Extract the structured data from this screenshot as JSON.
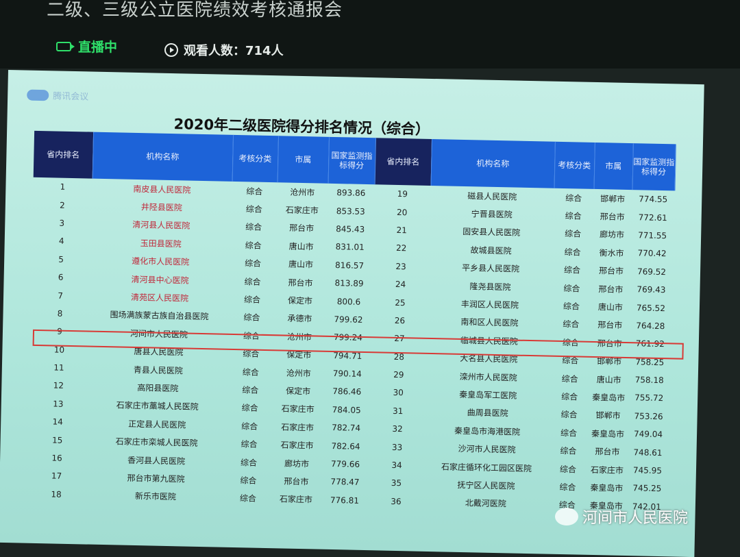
{
  "meeting": {
    "title": "二级、三级公立医院绩效考核通报会",
    "live_label": "直播中",
    "viewers_label": "观看人数：714人",
    "app_logo": "腾讯会议"
  },
  "slide": {
    "title": "2020年二级医院得分排名情况（综合）",
    "headers": {
      "rank": "省内排名",
      "name": "机构名称",
      "category": "考核分类",
      "city": "市属",
      "score": "国家监测指标得分"
    },
    "highlighted_ranks": [
      9,
      27
    ],
    "colors": {
      "header": "#1d63d8",
      "rank_header": "#17235e",
      "highlight_border": "#d83a36",
      "top_names": "#c0283a"
    },
    "left": [
      {
        "rank": "1",
        "name": "南皮县人民医院",
        "category": "综合",
        "city": "沧州市",
        "score": "893.86"
      },
      {
        "rank": "2",
        "name": "井陉县医院",
        "category": "综合",
        "city": "石家庄市",
        "score": "853.53"
      },
      {
        "rank": "3",
        "name": "清河县人民医院",
        "category": "综合",
        "city": "邢台市",
        "score": "845.43"
      },
      {
        "rank": "4",
        "name": "玉田县医院",
        "category": "综合",
        "city": "唐山市",
        "score": "831.01"
      },
      {
        "rank": "5",
        "name": "遵化市人民医院",
        "category": "综合",
        "city": "唐山市",
        "score": "816.57"
      },
      {
        "rank": "6",
        "name": "清河县中心医院",
        "category": "综合",
        "city": "邢台市",
        "score": "813.89"
      },
      {
        "rank": "7",
        "name": "清苑区人民医院",
        "category": "综合",
        "city": "保定市",
        "score": "800.6"
      },
      {
        "rank": "8",
        "name": "围场满族蒙古族自治县医院",
        "category": "综合",
        "city": "承德市",
        "score": "799.62"
      },
      {
        "rank": "9",
        "name": "河间市人民医院",
        "category": "综合",
        "city": "沧州市",
        "score": "799.24"
      },
      {
        "rank": "10",
        "name": "唐县人民医院",
        "category": "综合",
        "city": "保定市",
        "score": "794.71"
      },
      {
        "rank": "11",
        "name": "青县人民医院",
        "category": "综合",
        "city": "沧州市",
        "score": "790.14"
      },
      {
        "rank": "12",
        "name": "高阳县医院",
        "category": "综合",
        "city": "保定市",
        "score": "786.46"
      },
      {
        "rank": "13",
        "name": "石家庄市藁城人民医院",
        "category": "综合",
        "city": "石家庄市",
        "score": "784.05"
      },
      {
        "rank": "14",
        "name": "正定县人民医院",
        "category": "综合",
        "city": "石家庄市",
        "score": "782.74"
      },
      {
        "rank": "15",
        "name": "石家庄市栾城人民医院",
        "category": "综合",
        "city": "石家庄市",
        "score": "782.64"
      },
      {
        "rank": "16",
        "name": "香河县人民医院",
        "category": "综合",
        "city": "廊坊市",
        "score": "779.66"
      },
      {
        "rank": "17",
        "name": "邢台市第九医院",
        "category": "综合",
        "city": "邢台市",
        "score": "778.47"
      },
      {
        "rank": "18",
        "name": "新乐市医院",
        "category": "综合",
        "city": "石家庄市",
        "score": "776.81"
      }
    ],
    "right": [
      {
        "rank": "19",
        "name": "磁县人民医院",
        "category": "综合",
        "city": "邯郸市",
        "score": "774.55"
      },
      {
        "rank": "20",
        "name": "宁晋县医院",
        "category": "综合",
        "city": "邢台市",
        "score": "772.61"
      },
      {
        "rank": "21",
        "name": "固安县人民医院",
        "category": "综合",
        "city": "廊坊市",
        "score": "771.55"
      },
      {
        "rank": "22",
        "name": "故城县医院",
        "category": "综合",
        "city": "衡水市",
        "score": "770.42"
      },
      {
        "rank": "23",
        "name": "平乡县人民医院",
        "category": "综合",
        "city": "邢台市",
        "score": "769.52"
      },
      {
        "rank": "24",
        "name": "隆尧县医院",
        "category": "综合",
        "city": "邢台市",
        "score": "769.43"
      },
      {
        "rank": "25",
        "name": "丰润区人民医院",
        "category": "综合",
        "city": "唐山市",
        "score": "765.52"
      },
      {
        "rank": "26",
        "name": "南和区人民医院",
        "category": "综合",
        "city": "邢台市",
        "score": "764.28"
      },
      {
        "rank": "27",
        "name": "临城县人民医院",
        "category": "综合",
        "city": "邢台市",
        "score": "761.92"
      },
      {
        "rank": "28",
        "name": "大名县人民医院",
        "category": "综合",
        "city": "邯郸市",
        "score": "758.25"
      },
      {
        "rank": "29",
        "name": "滦州市人民医院",
        "category": "综合",
        "city": "唐山市",
        "score": "758.18"
      },
      {
        "rank": "30",
        "name": "秦皇岛军工医院",
        "category": "综合",
        "city": "秦皇岛市",
        "score": "755.72"
      },
      {
        "rank": "31",
        "name": "曲周县医院",
        "category": "综合",
        "city": "邯郸市",
        "score": "753.26"
      },
      {
        "rank": "32",
        "name": "秦皇岛市海港医院",
        "category": "综合",
        "city": "秦皇岛市",
        "score": "749.04"
      },
      {
        "rank": "33",
        "name": "沙河市人民医院",
        "category": "综合",
        "city": "邢台市",
        "score": "748.61"
      },
      {
        "rank": "34",
        "name": "石家庄循环化工园区医院",
        "category": "综合",
        "city": "石家庄市",
        "score": "745.95"
      },
      {
        "rank": "35",
        "name": "抚宁区人民医院",
        "category": "综合",
        "city": "秦皇岛市",
        "score": "745.25"
      },
      {
        "rank": "36",
        "name": "北戴河医院",
        "category": "综合",
        "city": "秦皇岛市",
        "score": "742.01"
      }
    ]
  },
  "watermark": "河间市人民医院"
}
